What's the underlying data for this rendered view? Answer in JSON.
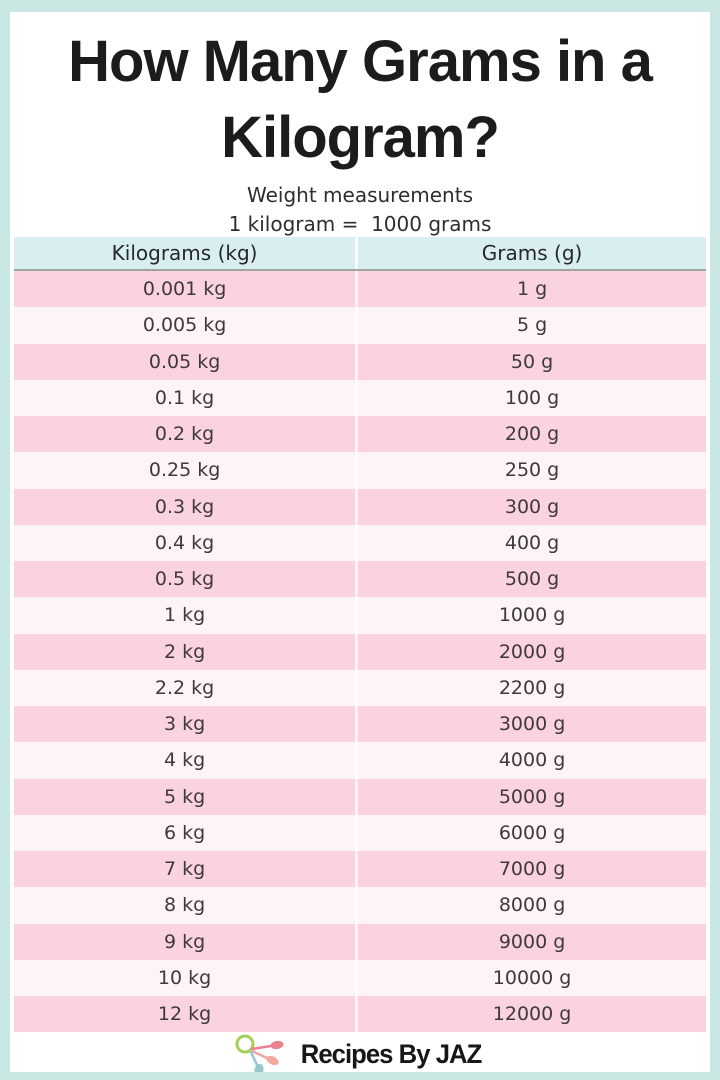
{
  "header": {
    "title_line1": "How Many Grams in a",
    "title_line2": "Kilogram?",
    "subtitle": "Weight measurements",
    "equation": "1 kilogram =  1000 grams"
  },
  "chart_data": {
    "type": "table",
    "title": "How Many Grams in a Kilogram?",
    "subtitle": "Weight measurements",
    "equation": "1 kilogram = 1000 grams",
    "columns": [
      "Kilograms (kg)",
      "Grams (g)"
    ],
    "rows": [
      [
        "0.001 kg",
        "1 g"
      ],
      [
        "0.005 kg",
        "5 g"
      ],
      [
        "0.05 kg",
        "50 g"
      ],
      [
        "0.1 kg",
        "100 g"
      ],
      [
        "0.2 kg",
        "200 g"
      ],
      [
        "0.25 kg",
        "250 g"
      ],
      [
        "0.3 kg",
        "300 g"
      ],
      [
        "0.4 kg",
        "400 g"
      ],
      [
        "0.5 kg",
        "500 g"
      ],
      [
        "1 kg",
        "1000 g"
      ],
      [
        "2 kg",
        "2000 g"
      ],
      [
        "2.2 kg",
        "2200 g"
      ],
      [
        "3 kg",
        "3000 g"
      ],
      [
        "4 kg",
        "4000 g"
      ],
      [
        "5 kg",
        "5000 g"
      ],
      [
        "6 kg",
        "6000 g"
      ],
      [
        "7 kg",
        "7000 g"
      ],
      [
        "8 kg",
        "8000 g"
      ],
      [
        "9 kg",
        "9000 g"
      ],
      [
        "10 kg",
        "10000 g"
      ],
      [
        "12 kg",
        "12000 g"
      ]
    ],
    "row_stripe_pattern": "first row pink, alternating pink / near-white",
    "legend_position": "none",
    "grid": false
  },
  "footer": {
    "brand": "Recipes By JAZ",
    "logo_icon": "measuring-spoons-icon"
  },
  "colors": {
    "frame_mint": "#c9e8e3",
    "header_row_bg": "#d9eef0",
    "row_pink": "#fbd3de",
    "row_light": "#fdf4f6",
    "header_underline": "#9fa3a4",
    "column_divider": "#ffffff",
    "body_text": "#3e393c",
    "title_text": "#1c1c1a",
    "logo_green": "#a5cf56",
    "logo_coral": "#ec8290",
    "logo_salmon": "#f2a89e",
    "logo_teal": "#96c8d0"
  }
}
